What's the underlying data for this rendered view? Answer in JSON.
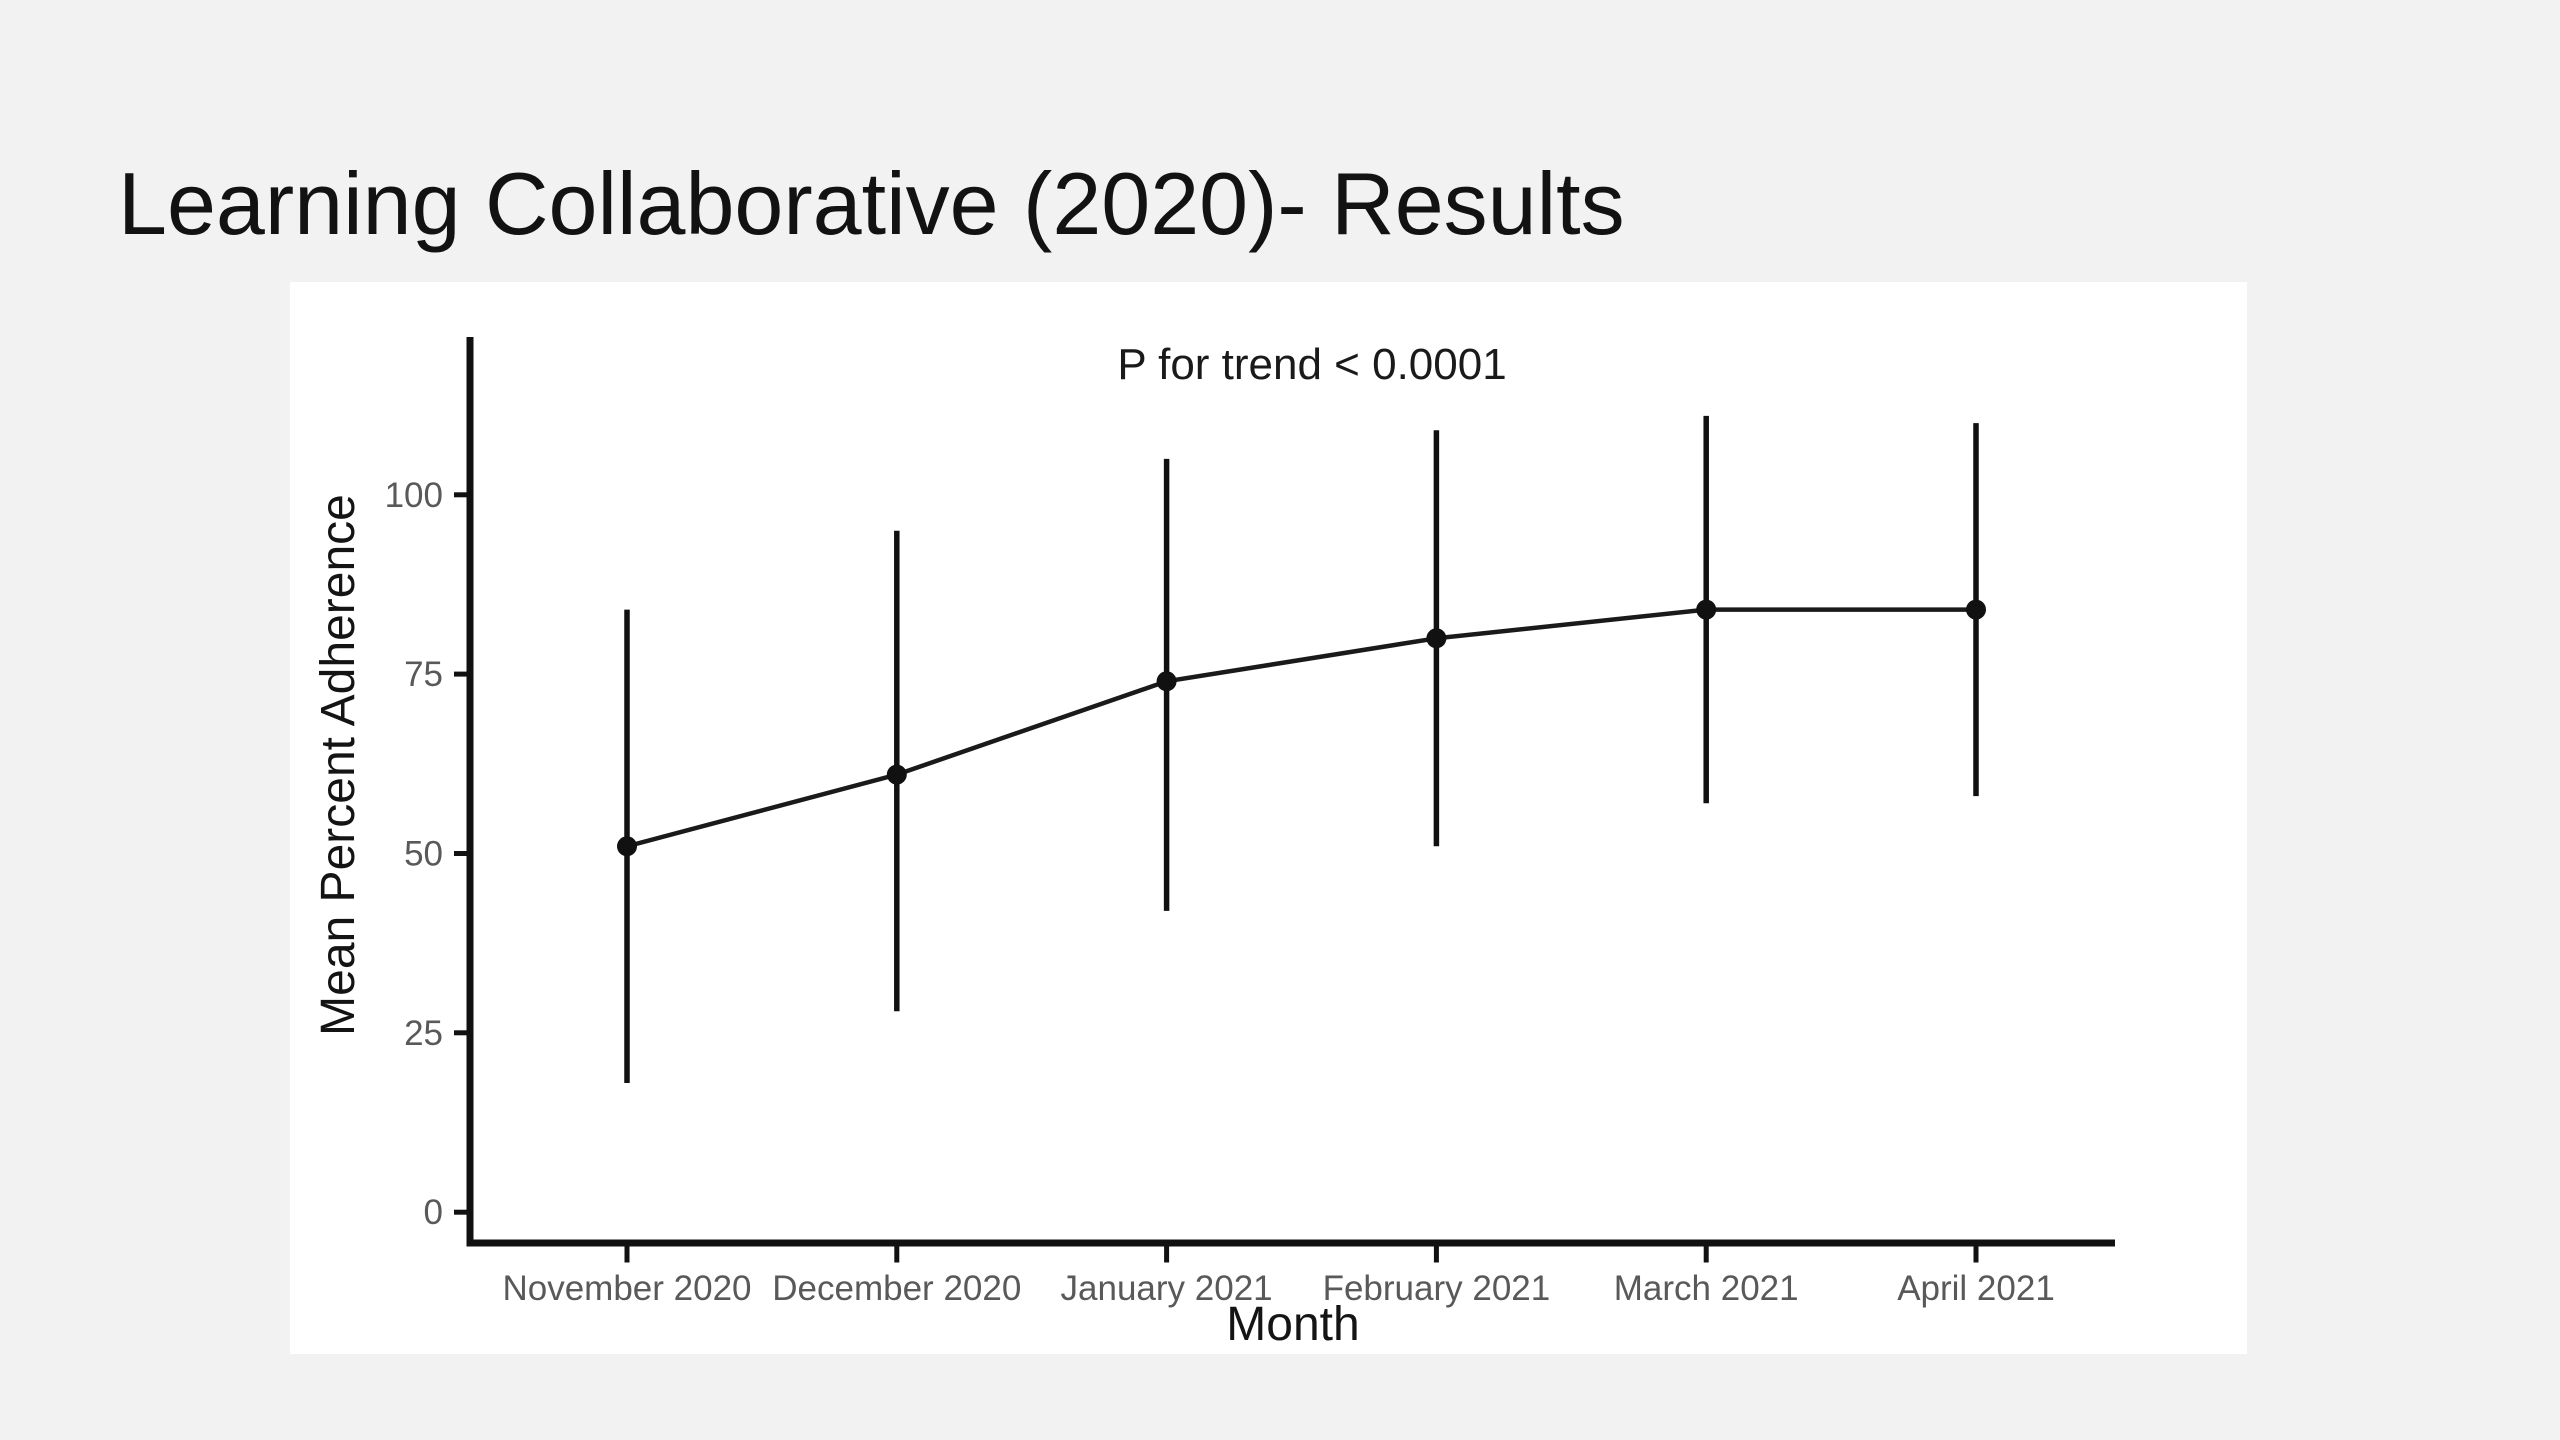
{
  "slide": {
    "title": "Learning Collaborative (2020)- Results",
    "background_color": "#f2f2f2",
    "panel_color": "#ffffff"
  },
  "chart_data": {
    "type": "line",
    "title": "",
    "annotation": "P for trend < 0.0001",
    "xlabel": "Month",
    "ylabel": "Mean Percent Adherence",
    "categories": [
      "November 2020",
      "December 2020",
      "January 2021",
      "February 2021",
      "March 2021",
      "April 2021"
    ],
    "series": [
      {
        "name": "Mean Percent Adherence",
        "values": [
          51,
          61,
          74,
          80,
          84,
          84
        ],
        "error_low": [
          18,
          28,
          42,
          51,
          57,
          58
        ],
        "error_high": [
          84,
          95,
          105,
          109,
          111,
          110
        ]
      }
    ],
    "yticks": [
      0,
      25,
      50,
      75,
      100
    ],
    "ylim": [
      -4.3,
      122
    ],
    "grid": false,
    "legend": false,
    "colors": {
      "line": "#1a1a1a",
      "point": "#111111",
      "error_bar": "#111111",
      "axis": "#111111",
      "tick_label": "#595959",
      "axis_title": "#141414",
      "annotation": "#1a1a1a"
    }
  }
}
